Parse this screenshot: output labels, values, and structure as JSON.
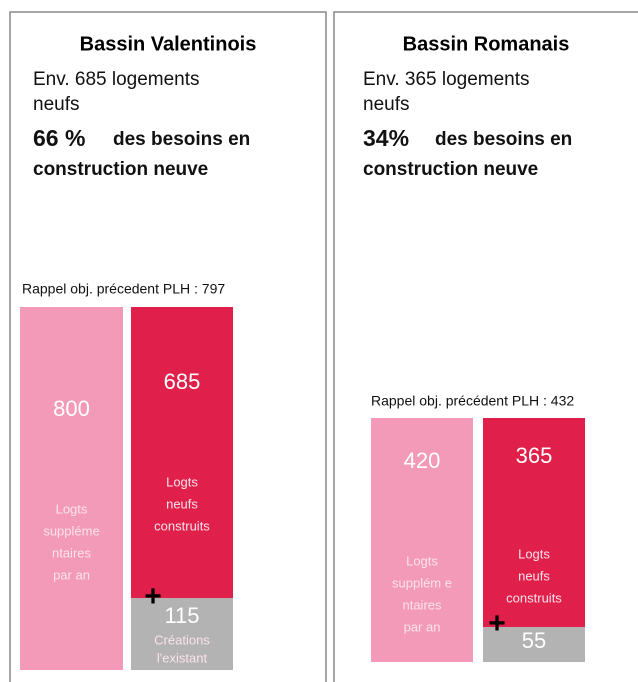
{
  "panels": [
    {
      "title": "Bassin Valentinois",
      "lines": [
        "Env. 685 logements",
        "neufs"
      ],
      "share": "66 %",
      "share_text": "des besoins en",
      "share_line2": "construction neuve",
      "reminder": "Rappel obj. précedent PLH : 797",
      "bars": [
        {
          "value": 800,
          "label": [
            "Logts",
            "suppléme",
            "ntaires",
            "par an"
          ]
        },
        {
          "value": 685,
          "label": [
            "Logts",
            "neufs",
            "construits"
          ]
        },
        {
          "value": 115,
          "label": [
            "Créations",
            "l'existant"
          ]
        }
      ],
      "plus": "+"
    },
    {
      "title": "Bassin Romanais",
      "lines": [
        "Env. 365 logements",
        "neufs"
      ],
      "share": "34%",
      "share_text": "des besoins en",
      "share_line2": "construction neuve",
      "reminder": "Rappel obj. précédent PLH : 432",
      "bars": [
        {
          "value": 420,
          "label": [
            "Logts",
            "supplém e",
            "ntaires",
            "par an"
          ]
        },
        {
          "value": 365,
          "label": [
            "Logts",
            "neufs",
            "construits"
          ]
        },
        {
          "value": 55,
          "label": []
        }
      ],
      "plus": "+"
    }
  ]
}
